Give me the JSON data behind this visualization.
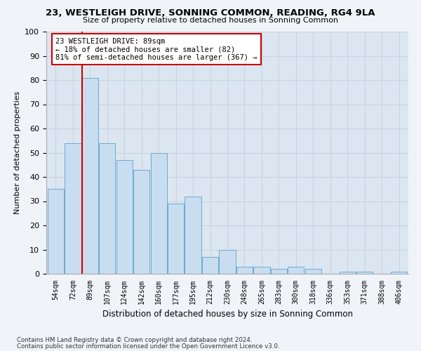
{
  "title": "23, WESTLEIGH DRIVE, SONNING COMMON, READING, RG4 9LA",
  "subtitle": "Size of property relative to detached houses in Sonning Common",
  "xlabel": "Distribution of detached houses by size in Sonning Common",
  "ylabel": "Number of detached properties",
  "footer1": "Contains HM Land Registry data © Crown copyright and database right 2024.",
  "footer2": "Contains public sector information licensed under the Open Government Licence v3.0.",
  "categories": [
    "54sqm",
    "72sqm",
    "89sqm",
    "107sqm",
    "124sqm",
    "142sqm",
    "160sqm",
    "177sqm",
    "195sqm",
    "212sqm",
    "230sqm",
    "248sqm",
    "265sqm",
    "283sqm",
    "300sqm",
    "318sqm",
    "336sqm",
    "353sqm",
    "371sqm",
    "388sqm",
    "406sqm"
  ],
  "values": [
    35,
    54,
    81,
    54,
    47,
    43,
    50,
    29,
    32,
    7,
    10,
    3,
    3,
    2,
    3,
    2,
    0,
    1,
    1,
    0,
    1
  ],
  "bar_color": "#c9ddf0",
  "bar_edge_color": "#6aaad4",
  "vline_color": "#cc0000",
  "annotation_line1": "23 WESTLEIGH DRIVE: 89sqm",
  "annotation_line2": "← 18% of detached houses are smaller (82)",
  "annotation_line3": "81% of semi-detached houses are larger (367) →",
  "annotation_box_color": "#ffffff",
  "annotation_box_edge": "#cc0000",
  "ylim": [
    0,
    100
  ],
  "yticks": [
    0,
    10,
    20,
    30,
    40,
    50,
    60,
    70,
    80,
    90,
    100
  ],
  "grid_color": "#c8d4e3",
  "bg_color": "#dce6f0",
  "fig_bg_color": "#f0f4f8"
}
